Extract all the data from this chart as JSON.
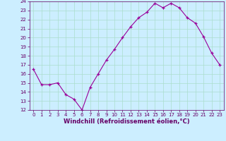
{
  "x": [
    0,
    1,
    2,
    3,
    4,
    5,
    6,
    7,
    8,
    9,
    10,
    11,
    12,
    13,
    14,
    15,
    16,
    17,
    18,
    19,
    20,
    21,
    22,
    23
  ],
  "y": [
    16.5,
    14.8,
    14.8,
    15.0,
    13.7,
    13.2,
    12.0,
    14.5,
    16.0,
    17.5,
    18.7,
    20.0,
    21.2,
    22.2,
    22.8,
    23.8,
    23.3,
    23.8,
    23.3,
    22.2,
    21.6,
    20.1,
    18.3,
    17.0
  ],
  "line_color": "#990099",
  "marker": "+",
  "marker_color": "#990099",
  "bg_color": "#cceeff",
  "grid_color": "#aaddcc",
  "xlabel": "Windchill (Refroidissement éolien,°C)",
  "xlabel_color": "#660066",
  "tick_color": "#660066",
  "ylim": [
    12,
    24
  ],
  "xlim": [
    -0.5,
    23.5
  ],
  "yticks": [
    12,
    13,
    14,
    15,
    16,
    17,
    18,
    19,
    20,
    21,
    22,
    23,
    24
  ],
  "xticks": [
    0,
    1,
    2,
    3,
    4,
    5,
    6,
    7,
    8,
    9,
    10,
    11,
    12,
    13,
    14,
    15,
    16,
    17,
    18,
    19,
    20,
    21,
    22,
    23
  ],
  "tick_fontsize": 5.0,
  "xlabel_fontsize": 6.0
}
